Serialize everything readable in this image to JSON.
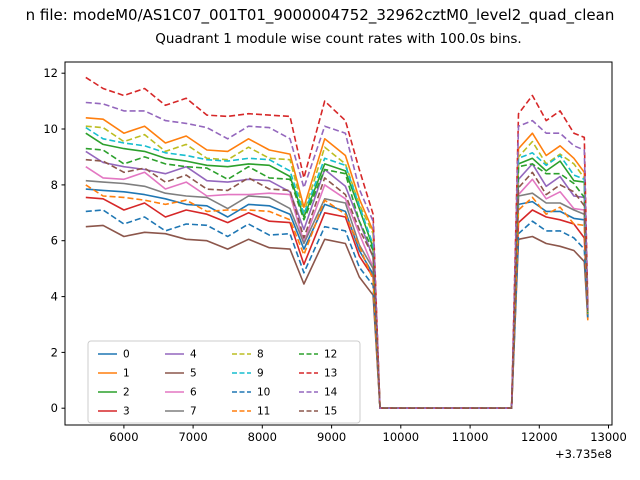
{
  "figure": {
    "suptitle": "n file: modeM0/AS1C07_001T01_9000004752_32962cztM0_level2_quad_clean",
    "background": "#ffffff"
  },
  "chart_data": {
    "type": "line",
    "title": "Quadrant 1 module wise count rates with 100.0s bins.",
    "xlabel": "",
    "ylabel": "",
    "x_offset_label": "+3.735e8",
    "xlim": [
      5150,
      13050
    ],
    "ylim": [
      -0.6,
      12.4
    ],
    "xticks": [
      6000,
      7000,
      8000,
      9000,
      10000,
      11000,
      12000,
      13000
    ],
    "yticks": [
      0,
      2,
      4,
      6,
      8,
      10,
      12
    ],
    "grid": false,
    "legend": {
      "position": "lower left",
      "columns": 4,
      "rows": 4
    },
    "x": [
      5450,
      5700,
      6000,
      6300,
      6600,
      6900,
      7200,
      7500,
      7800,
      8100,
      8400,
      8600,
      8900,
      9200,
      9400,
      9600,
      9700,
      11600,
      11700,
      11900,
      12100,
      12300,
      12500,
      12650,
      12700
    ],
    "series": [
      {
        "name": "0",
        "color": "#1f77b4",
        "dash": false,
        "values": [
          8.0,
          7.8,
          7.6,
          7.7,
          7.4,
          7.4,
          7.2,
          7.0,
          7.3,
          7.1,
          7.0,
          5.6,
          7.4,
          7.0,
          5.8,
          4.8,
          0,
          0,
          7.2,
          7.5,
          7.0,
          7.2,
          6.8,
          6.6,
          3.4
        ]
      },
      {
        "name": "1",
        "color": "#ff7f0e",
        "dash": false,
        "values": [
          10.4,
          10.2,
          9.9,
          10.0,
          9.6,
          9.7,
          9.4,
          9.2,
          9.5,
          9.3,
          9.0,
          7.3,
          9.6,
          9.2,
          7.5,
          6.2,
          0,
          0,
          9.4,
          9.8,
          9.2,
          9.4,
          8.8,
          8.5,
          3.5
        ]
      },
      {
        "name": "2",
        "color": "#2ca02c",
        "dash": false,
        "values": [
          9.7,
          9.5,
          9.2,
          9.3,
          8.9,
          9.0,
          8.7,
          8.5,
          8.8,
          8.6,
          8.4,
          6.8,
          8.9,
          8.5,
          7.0,
          5.8,
          0,
          0,
          8.7,
          9.1,
          8.5,
          8.7,
          8.2,
          8.0,
          3.4
        ]
      },
      {
        "name": "3",
        "color": "#d62728",
        "dash": false,
        "values": [
          7.6,
          7.4,
          7.2,
          7.3,
          7.0,
          7.1,
          6.8,
          6.7,
          6.9,
          6.8,
          6.6,
          5.3,
          7.0,
          6.7,
          5.5,
          4.6,
          0,
          0,
          6.8,
          7.1,
          6.7,
          6.8,
          6.5,
          6.2,
          3.3
        ]
      },
      {
        "name": "4",
        "color": "#9467bd",
        "dash": false,
        "values": [
          9.1,
          8.9,
          8.6,
          8.7,
          8.4,
          8.5,
          8.2,
          8.0,
          8.3,
          8.1,
          7.9,
          6.4,
          8.4,
          8.0,
          6.6,
          5.5,
          0,
          0,
          8.2,
          8.6,
          8.0,
          8.2,
          7.7,
          7.5,
          3.4
        ]
      },
      {
        "name": "5",
        "color": "#8c564b",
        "dash": false,
        "values": [
          6.6,
          6.5,
          6.3,
          6.3,
          6.1,
          6.1,
          5.9,
          5.8,
          6.0,
          5.9,
          5.7,
          4.3,
          6.1,
          5.8,
          4.8,
          4.0,
          0,
          0,
          5.9,
          6.2,
          5.8,
          5.9,
          5.6,
          5.4,
          3.2
        ]
      },
      {
        "name": "6",
        "color": "#e377c2",
        "dash": false,
        "values": [
          8.6,
          8.4,
          8.2,
          8.3,
          7.9,
          8.0,
          7.7,
          7.6,
          7.8,
          7.7,
          7.5,
          6.0,
          7.9,
          7.6,
          6.2,
          5.2,
          0,
          0,
          7.7,
          8.1,
          7.6,
          7.7,
          7.3,
          7.1,
          3.4
        ]
      },
      {
        "name": "7",
        "color": "#7f7f7f",
        "dash": false,
        "values": [
          8.3,
          8.1,
          7.9,
          8.0,
          7.6,
          7.7,
          7.5,
          7.3,
          7.6,
          7.4,
          7.2,
          5.8,
          7.6,
          7.3,
          6.0,
          5.0,
          0,
          0,
          7.5,
          7.8,
          7.3,
          7.5,
          7.1,
          6.8,
          3.3
        ]
      },
      {
        "name": "8",
        "color": "#bcbd22",
        "dash": true,
        "values": [
          10.1,
          9.9,
          9.6,
          9.7,
          9.3,
          9.4,
          9.1,
          8.9,
          9.2,
          9.0,
          8.8,
          7.1,
          9.3,
          8.9,
          7.3,
          6.1,
          0,
          0,
          9.1,
          9.5,
          8.9,
          9.1,
          8.6,
          8.3,
          3.5
        ]
      },
      {
        "name": "9",
        "color": "#17becf",
        "dash": true,
        "values": [
          9.9,
          9.7,
          9.4,
          9.5,
          9.1,
          9.2,
          8.9,
          8.7,
          9.0,
          8.8,
          8.6,
          6.9,
          9.1,
          8.7,
          7.1,
          5.9,
          0,
          0,
          8.9,
          9.3,
          8.7,
          8.9,
          8.4,
          8.1,
          3.5
        ]
      },
      {
        "name": "10",
        "color": "#1f77b4",
        "dash": true,
        "values": [
          7.1,
          7.0,
          6.7,
          6.8,
          6.5,
          6.6,
          6.4,
          6.2,
          6.5,
          6.3,
          6.2,
          5.0,
          6.5,
          6.2,
          5.1,
          4.3,
          0,
          0,
          6.4,
          6.7,
          6.2,
          6.4,
          6.0,
          5.8,
          3.2
        ]
      },
      {
        "name": "11",
        "color": "#ff7f0e",
        "dash": true,
        "values": [
          7.9,
          7.7,
          7.5,
          7.6,
          7.3,
          7.3,
          7.1,
          7.0,
          7.2,
          7.0,
          6.9,
          5.5,
          7.3,
          7.0,
          5.7,
          4.7,
          0,
          0,
          7.1,
          7.4,
          7.0,
          7.1,
          6.7,
          6.5,
          3.3
        ]
      },
      {
        "name": "12",
        "color": "#2ca02c",
        "dash": true,
        "values": [
          9.4,
          9.2,
          8.9,
          9.0,
          8.6,
          8.7,
          8.5,
          8.3,
          8.6,
          8.4,
          8.2,
          6.6,
          8.6,
          8.3,
          6.8,
          5.6,
          0,
          0,
          8.5,
          8.8,
          8.3,
          8.5,
          8.0,
          7.7,
          3.4
        ]
      },
      {
        "name": "13",
        "color": "#d62728",
        "dash": true,
        "values": [
          11.8,
          11.6,
          11.2,
          11.3,
          10.9,
          11.0,
          10.6,
          10.4,
          10.7,
          10.5,
          10.3,
          8.3,
          10.9,
          10.4,
          8.5,
          7.1,
          0,
          0,
          10.6,
          11.1,
          10.4,
          10.6,
          10.0,
          9.7,
          3.6
        ]
      },
      {
        "name": "14",
        "color": "#9467bd",
        "dash": true,
        "values": [
          11.1,
          10.9,
          10.5,
          10.7,
          10.2,
          10.3,
          10.0,
          9.8,
          10.1,
          9.9,
          9.7,
          7.8,
          10.2,
          9.8,
          8.0,
          6.7,
          0,
          0,
          10.0,
          10.4,
          9.8,
          10.0,
          9.4,
          9.1,
          3.5
        ]
      },
      {
        "name": "15",
        "color": "#8c564b",
        "dash": true,
        "values": [
          8.9,
          8.7,
          8.5,
          8.5,
          8.2,
          8.3,
          8.0,
          7.8,
          8.1,
          7.9,
          7.7,
          6.2,
          8.2,
          7.8,
          6.4,
          5.3,
          0,
          0,
          8.0,
          8.4,
          7.8,
          8.0,
          7.6,
          7.3,
          3.4
        ]
      }
    ]
  }
}
